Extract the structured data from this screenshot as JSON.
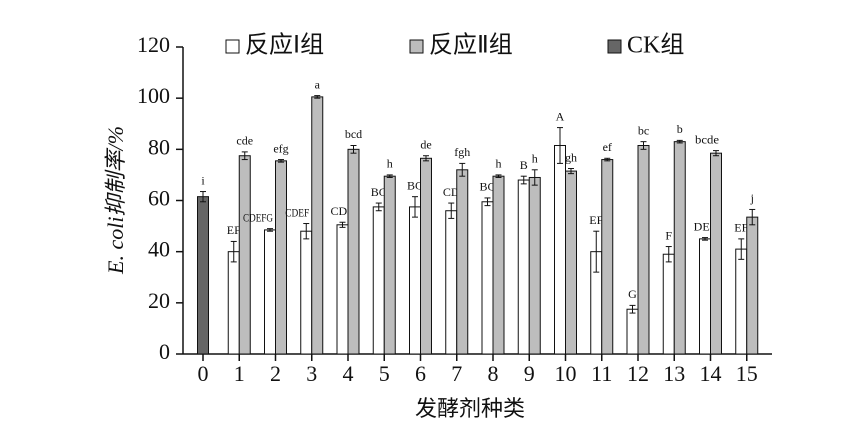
{
  "chart_data": {
    "type": "bar",
    "x_label": "发酵剂种类",
    "y_label": "E. coli抑制率/%",
    "categories": [
      "0",
      "1",
      "2",
      "3",
      "4",
      "5",
      "6",
      "7",
      "8",
      "9",
      "10",
      "11",
      "12",
      "13",
      "14",
      "15"
    ],
    "ylim": [
      0,
      120
    ],
    "yticks": [
      0,
      20,
      40,
      60,
      80,
      100,
      120
    ],
    "series": [
      {
        "name": "反应Ⅰ组",
        "color": "#ffffff",
        "values": [
          null,
          40,
          48.5,
          48,
          50.5,
          57.5,
          57.5,
          56,
          59.5,
          68,
          81.5,
          40,
          17.5,
          39,
          45,
          41
        ],
        "errors": [
          null,
          4,
          0.5,
          3,
          1,
          1.5,
          4,
          3,
          1.5,
          1.5,
          7,
          8,
          1.5,
          3,
          0.5,
          4
        ],
        "labels": [
          null,
          "EF",
          "CDEFG",
          "CDEF",
          "CDE",
          "BC",
          "BC",
          "CD",
          "BC",
          "B",
          "A",
          "EF",
          "G",
          "F",
          "DEF",
          "EF"
        ]
      },
      {
        "name": "反应Ⅱ组",
        "color": "#bdbdbd",
        "values": [
          null,
          77.5,
          75.5,
          100.5,
          80,
          69.5,
          76.5,
          72,
          69.5,
          69,
          71.5,
          76,
          81.5,
          83,
          78.5,
          53.5
        ],
        "errors": [
          null,
          1.5,
          0.5,
          0.5,
          1.5,
          0.5,
          1,
          2.5,
          0.5,
          3,
          1,
          0.5,
          1.5,
          0.5,
          1,
          3
        ],
        "labels": [
          null,
          "cde",
          "efg",
          "a",
          "bcd",
          "h",
          "de",
          "fgh",
          "h",
          "h",
          "gh",
          "ef",
          "bc",
          "b",
          "bcde",
          "j"
        ]
      },
      {
        "name": "CK组",
        "color": "#666666",
        "values": [
          61.5,
          null,
          null,
          null,
          null,
          null,
          null,
          null,
          null,
          null,
          null,
          null,
          null,
          null,
          null,
          null
        ],
        "errors": [
          2,
          null,
          null,
          null,
          null,
          null,
          null,
          null,
          null,
          null,
          null,
          null,
          null,
          null,
          null,
          null
        ],
        "labels": [
          "i",
          null,
          null,
          null,
          null,
          null,
          null,
          null,
          null,
          null,
          null,
          null,
          null,
          null,
          null,
          null
        ]
      }
    ]
  }
}
